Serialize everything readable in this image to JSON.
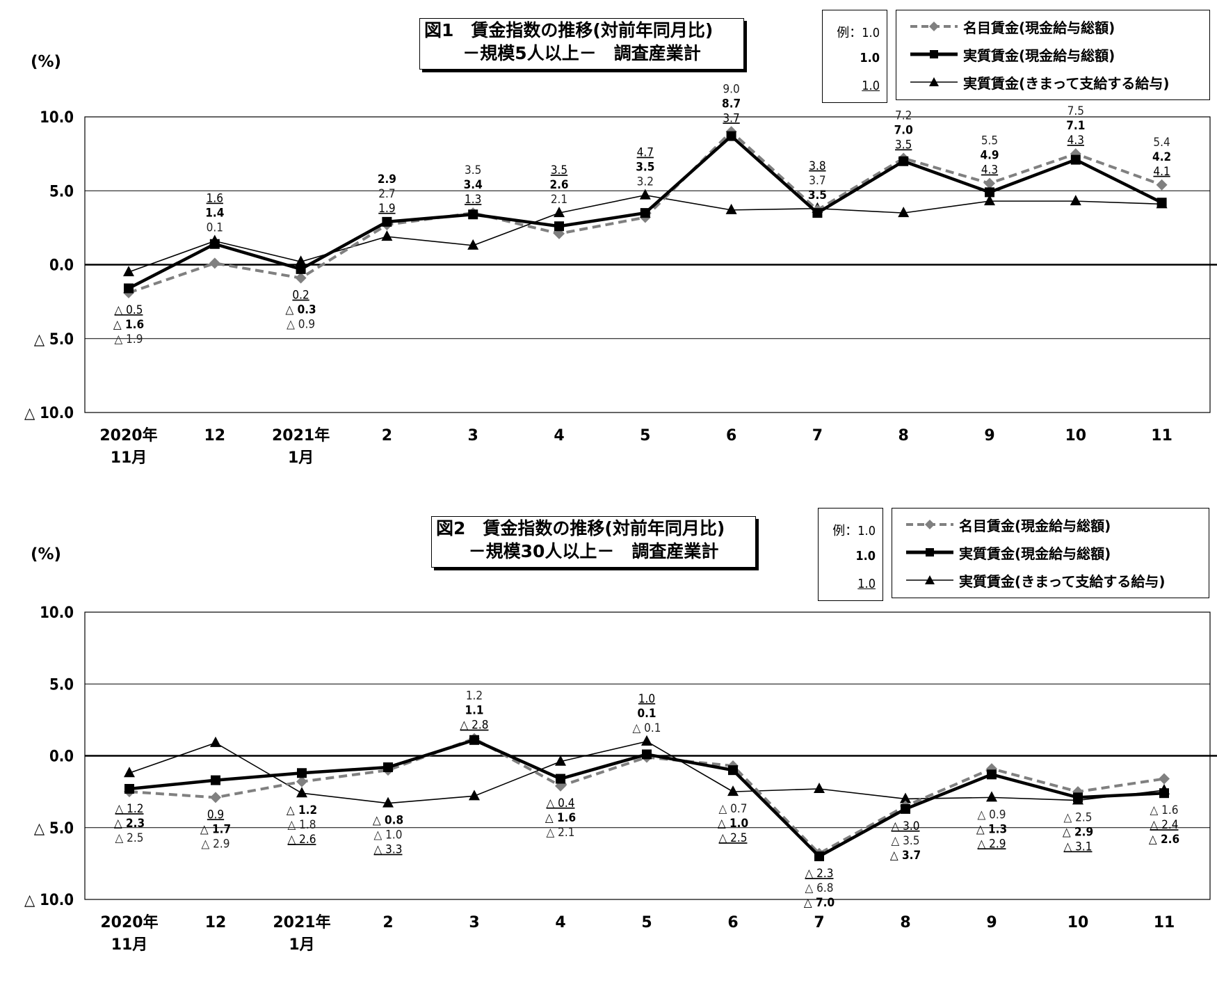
{
  "styles": {
    "nominal": {
      "color": "#808080",
      "marker": "diamond",
      "line": "dashed"
    },
    "real_total": {
      "color": "#000000",
      "marker": "square",
      "line": "thick"
    },
    "real_regular": {
      "color": "#000000",
      "marker": "triangle",
      "line": "thin"
    }
  },
  "key": {
    "prefix": "例：",
    "value": "1.0"
  },
  "legend": [
    {
      "key": "nominal",
      "label": "名目賃金(現金給与総額)"
    },
    {
      "key": "real_total",
      "label": "実質賃金(現金給与総額)"
    },
    {
      "key": "real_regular",
      "label": "実質賃金(きまって支給する給与)"
    }
  ],
  "chart_data": [
    {
      "type": "line",
      "title_line1": "図1　賃金指数の推移(対前年同月比)",
      "title_line2": "－規模5人以上－　調査産業計",
      "ylabel": "(%)",
      "ylim": [
        -10,
        10
      ],
      "yticks": [
        "10.0",
        "5.0",
        "0.0",
        "△ 5.0",
        "△ 10.0"
      ],
      "categories": [
        [
          "2020年",
          "11月"
        ],
        [
          "12"
        ],
        [
          "2021年",
          "1月"
        ],
        [
          "2"
        ],
        [
          "3"
        ],
        [
          "4"
        ],
        [
          "5"
        ],
        [
          "6"
        ],
        [
          "7"
        ],
        [
          "8"
        ],
        [
          "9"
        ],
        [
          "10"
        ],
        [
          "11"
        ]
      ],
      "series": [
        {
          "key": "nominal",
          "name": "名目賃金(現金給与総額)",
          "values": [
            -1.9,
            0.1,
            -0.9,
            2.7,
            3.5,
            2.1,
            3.2,
            9.0,
            3.7,
            7.2,
            5.5,
            7.5,
            5.4
          ]
        },
        {
          "key": "real_total",
          "name": "実質賃金(現金給与総額)",
          "values": [
            -1.6,
            1.4,
            -0.3,
            2.9,
            3.4,
            2.6,
            3.5,
            8.7,
            3.5,
            7.0,
            4.9,
            7.1,
            4.2
          ]
        },
        {
          "key": "real_regular",
          "name": "実質賃金(きまって支給する給与)",
          "values": [
            -0.5,
            1.6,
            0.2,
            1.9,
            1.3,
            3.5,
            4.7,
            3.7,
            3.8,
            3.5,
            4.3,
            4.3,
            4.1
          ]
        }
      ]
    },
    {
      "type": "line",
      "title_line1": "図2　賃金指数の推移(対前年同月比)",
      "title_line2": "－規模30人以上－　調査産業計",
      "ylabel": "(%)",
      "ylim": [
        -10,
        10
      ],
      "yticks": [
        "10.0",
        "5.0",
        "0.0",
        "△ 5.0",
        "△ 10.0"
      ],
      "categories": [
        [
          "2020年",
          "11月"
        ],
        [
          "12"
        ],
        [
          "2021年",
          "1月"
        ],
        [
          "2"
        ],
        [
          "3"
        ],
        [
          "4"
        ],
        [
          "5"
        ],
        [
          "6"
        ],
        [
          "7"
        ],
        [
          "8"
        ],
        [
          "9"
        ],
        [
          "10"
        ],
        [
          "11"
        ]
      ],
      "series": [
        {
          "key": "nominal",
          "name": "名目賃金(現金給与総額)",
          "values": [
            -2.5,
            -2.9,
            -1.8,
            -1.0,
            1.2,
            -2.1,
            -0.1,
            -0.7,
            -6.8,
            -3.5,
            -0.9,
            -2.5,
            -1.6
          ]
        },
        {
          "key": "real_total",
          "name": "実質賃金(現金給与総額)",
          "values": [
            -2.3,
            -1.7,
            -1.2,
            -0.8,
            1.1,
            -1.6,
            0.1,
            -1.0,
            -7.0,
            -3.7,
            -1.3,
            -2.9,
            -2.6
          ]
        },
        {
          "key": "real_regular",
          "name": "実質賃金(きまって支給する給与)",
          "values": [
            -1.2,
            0.9,
            -2.6,
            -3.3,
            -2.8,
            -0.4,
            1.0,
            -2.5,
            -2.3,
            -3.0,
            -2.9,
            -3.1,
            -2.4
          ]
        }
      ]
    }
  ]
}
